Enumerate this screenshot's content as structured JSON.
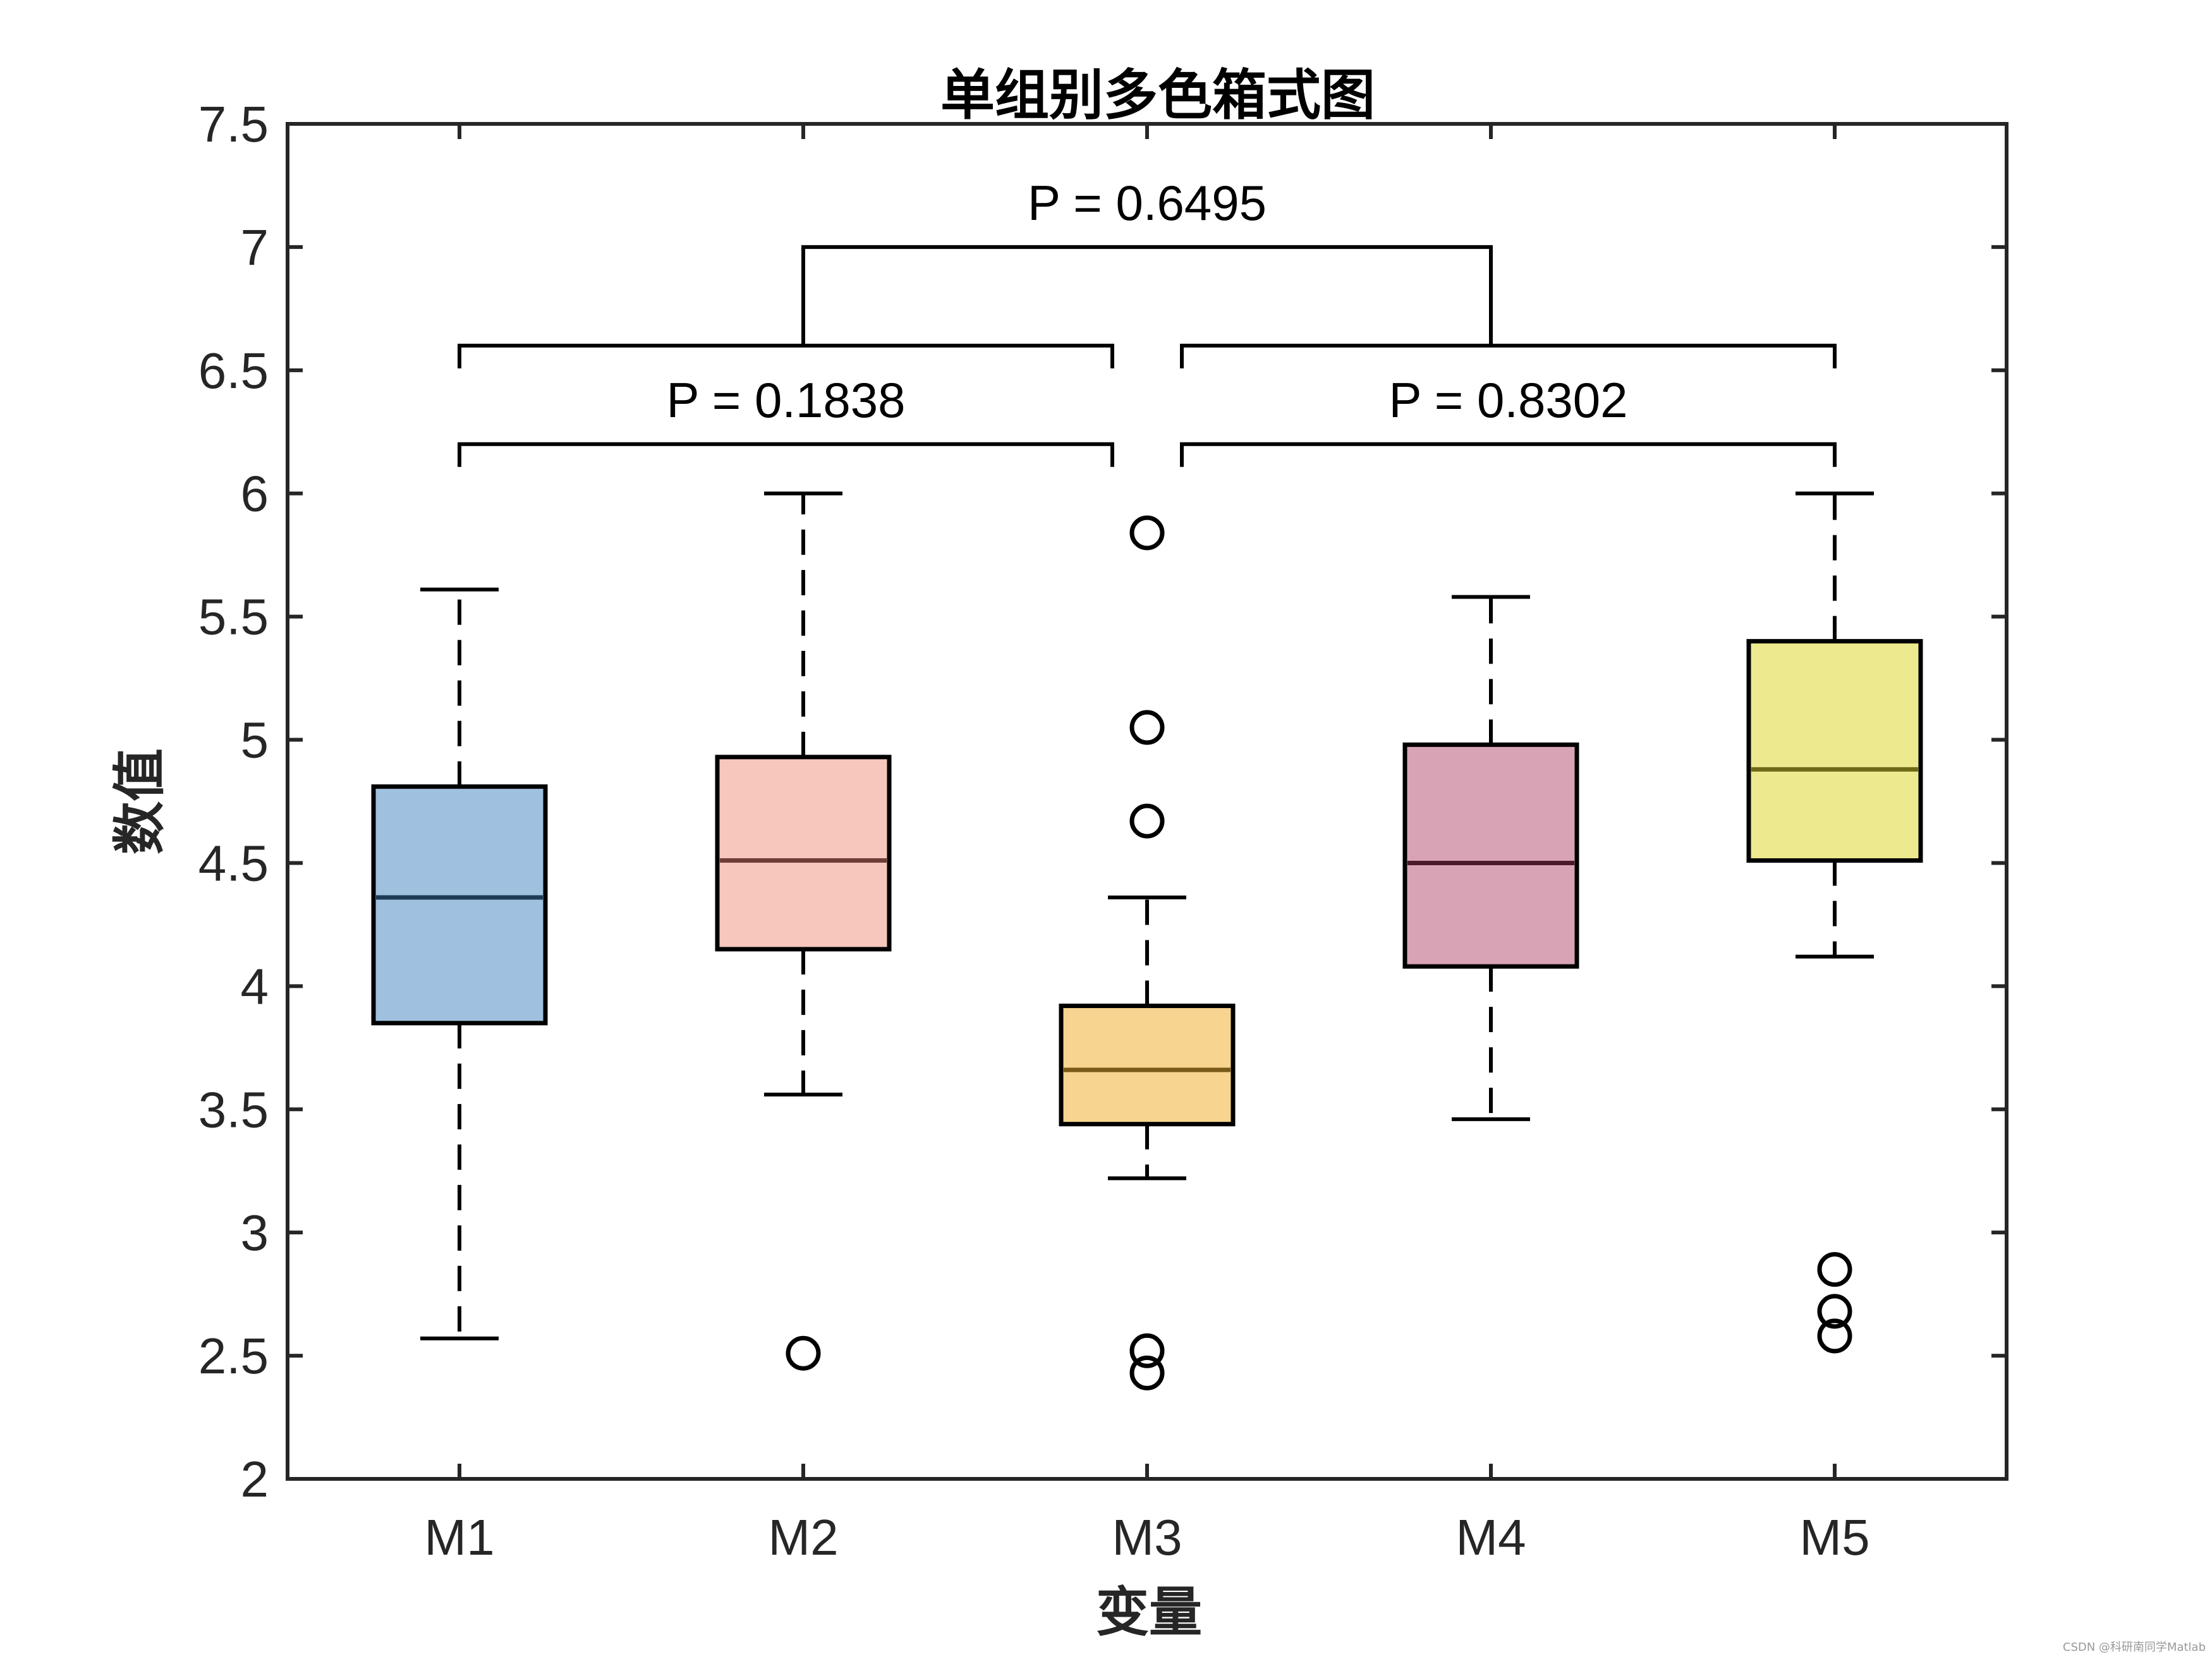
{
  "chart_data": {
    "type": "boxplot",
    "title": "单组别多色箱式图",
    "xlabel": "变量",
    "ylabel": "数值",
    "ylim": [
      2,
      7.5
    ],
    "yticks": [
      "2",
      "2.5",
      "3",
      "3.5",
      "4",
      "4.5",
      "5",
      "5.5",
      "6",
      "6.5",
      "7",
      "7.5"
    ],
    "ytick_values": [
      2,
      2.5,
      3,
      3.5,
      4,
      4.5,
      5,
      5.5,
      6,
      6.5,
      7,
      7.5
    ],
    "categories": [
      "M1",
      "M2",
      "M3",
      "M4",
      "M5"
    ],
    "boxes": [
      {
        "name": "M1",
        "whisker_low": 2.57,
        "q1": 3.85,
        "median": 4.36,
        "q3": 4.81,
        "whisker_high": 5.61,
        "outliers": [],
        "fill": "#9fc0de",
        "median_color": "#1f3a55"
      },
      {
        "name": "M2",
        "whisker_low": 3.56,
        "q1": 4.15,
        "median": 4.51,
        "q3": 4.93,
        "whisker_high": 6.0,
        "outliers": [
          2.51
        ],
        "fill": "#f7c6bd",
        "median_color": "#6e3e36"
      },
      {
        "name": "M3",
        "whisker_low": 3.22,
        "q1": 3.44,
        "median": 3.66,
        "q3": 3.92,
        "whisker_high": 4.36,
        "outliers": [
          5.84,
          5.05,
          4.67,
          2.52,
          2.43
        ],
        "fill": "#f7d48f",
        "median_color": "#7a5a18"
      },
      {
        "name": "M4",
        "whisker_low": 3.46,
        "q1": 4.08,
        "median": 4.5,
        "q3": 4.98,
        "whisker_high": 5.58,
        "outliers": [],
        "fill": "#d9a3b6",
        "median_color": "#4a1a2a"
      },
      {
        "name": "M5",
        "whisker_low": 4.12,
        "q1": 4.51,
        "median": 4.88,
        "q3": 5.4,
        "whisker_high": 6.0,
        "outliers": [
          2.85,
          2.68,
          2.58
        ],
        "fill": "#ede98e",
        "median_color": "#6e6a18"
      }
    ],
    "significance": [
      {
        "label": "P = 0.1838",
        "from": 1,
        "to": 3,
        "y_bracket": 6.2,
        "y_label": 6.31
      },
      {
        "label": "P = 0.8302",
        "from": 3,
        "to": 5,
        "y_bracket": 6.2,
        "y_label": 6.31
      },
      {
        "label": "P = 0.6495",
        "group_a": [
          1,
          3
        ],
        "group_b": [
          3,
          5
        ],
        "y_lower": 6.6,
        "y_upper": 7.0,
        "y_label": 7.11
      }
    ],
    "grid": false,
    "legend": "none"
  },
  "watermark": "CSDN @科研南同学Matlab"
}
